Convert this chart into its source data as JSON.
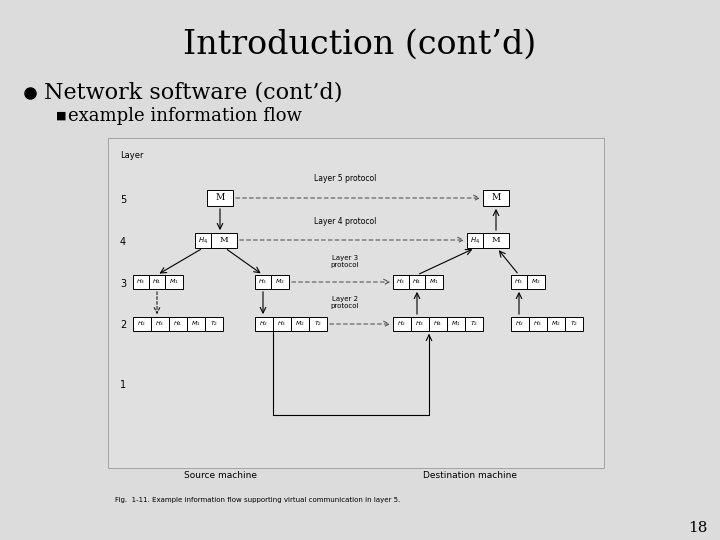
{
  "title": "Introduction (cont’d)",
  "bullet1": "Network software (cont’d)",
  "bullet2": "example information flow",
  "fig_caption": "Fig.  1-11. Example information flow supporting virtual communication in layer 5.",
  "page_number": "18",
  "bg_color": "#dcdcdc",
  "diagram_bg": "#e8e8e8",
  "diagram_border": "#aaaaaa"
}
